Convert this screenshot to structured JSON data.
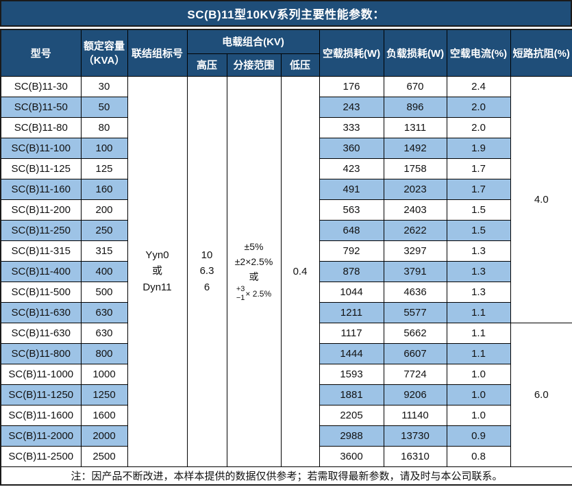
{
  "title": "SC(B)11型10KV系列主要性能参数：",
  "columns": {
    "model": "型号",
    "capacity_line1": "额定容量",
    "capacity_line2": "（KVA）",
    "vector_group": "联结组标号",
    "load_combo": "电载组合(KV)",
    "hv": "高压",
    "tap_range": "分接范围",
    "lv": "低压",
    "no_load_loss": "空载损耗(W)",
    "load_loss": "负载损耗(W)",
    "no_load_current": "空载电流(%)",
    "impedance": "短路抗阻(%)"
  },
  "merged": {
    "vector_group": "Yyn0\n或\nDyn11",
    "hv": "10\n6.3\n6",
    "lv": "0.4",
    "tap_range": {
      "lines": [
        "±5%",
        "±2×2.5%",
        "或"
      ],
      "stacked": {
        "top": "+3",
        "bottom": "−1",
        "suffix": "× 2.5%"
      }
    },
    "impedance_groups": [
      {
        "value": "4.0",
        "row_span": 12
      },
      {
        "value": "6.0",
        "row_span": 7
      }
    ]
  },
  "rows": [
    {
      "model": "SC(B)11-30",
      "capacity": "30",
      "no_load_loss": "176",
      "load_loss": "670",
      "no_load_current": "2.4"
    },
    {
      "model": "SC(B)11-50",
      "capacity": "50",
      "no_load_loss": "243",
      "load_loss": "896",
      "no_load_current": "2.0"
    },
    {
      "model": "SC(B)11-80",
      "capacity": "80",
      "no_load_loss": "333",
      "load_loss": "1311",
      "no_load_current": "2.0"
    },
    {
      "model": "SC(B)11-100",
      "capacity": "100",
      "no_load_loss": "360",
      "load_loss": "1492",
      "no_load_current": "1.9"
    },
    {
      "model": "SC(B)11-125",
      "capacity": "125",
      "no_load_loss": "423",
      "load_loss": "1758",
      "no_load_current": "1.7"
    },
    {
      "model": "SC(B)11-160",
      "capacity": "160",
      "no_load_loss": "491",
      "load_loss": "2023",
      "no_load_current": "1.7"
    },
    {
      "model": "SC(B)11-200",
      "capacity": "200",
      "no_load_loss": "563",
      "load_loss": "2403",
      "no_load_current": "1.5"
    },
    {
      "model": "SC(B)11-250",
      "capacity": "250",
      "no_load_loss": "648",
      "load_loss": "2622",
      "no_load_current": "1.5"
    },
    {
      "model": "SC(B)11-315",
      "capacity": "315",
      "no_load_loss": "792",
      "load_loss": "3297",
      "no_load_current": "1.3"
    },
    {
      "model": "SC(B)11-400",
      "capacity": "400",
      "no_load_loss": "878",
      "load_loss": "3791",
      "no_load_current": "1.3"
    },
    {
      "model": "SC(B)11-500",
      "capacity": "500",
      "no_load_loss": "1044",
      "load_loss": "4636",
      "no_load_current": "1.3"
    },
    {
      "model": "SC(B)11-630",
      "capacity": "630",
      "no_load_loss": "1211",
      "load_loss": "5577",
      "no_load_current": "1.1"
    },
    {
      "model": "SC(B)11-630",
      "capacity": "630",
      "no_load_loss": "1117",
      "load_loss": "5662",
      "no_load_current": "1.1"
    },
    {
      "model": "SC(B)11-800",
      "capacity": "800",
      "no_load_loss": "1444",
      "load_loss": "6607",
      "no_load_current": "1.1"
    },
    {
      "model": "SC(B)11-1000",
      "capacity": "1000",
      "no_load_loss": "1593",
      "load_loss": "7724",
      "no_load_current": "1.0"
    },
    {
      "model": "SC(B)11-1250",
      "capacity": "1250",
      "no_load_loss": "1881",
      "load_loss": "9206",
      "no_load_current": "1.0"
    },
    {
      "model": "SC(B)11-1600",
      "capacity": "1600",
      "no_load_loss": "2205",
      "load_loss": "11140",
      "no_load_current": "1.0"
    },
    {
      "model": "SC(B)11-2000",
      "capacity": "2000",
      "no_load_loss": "2988",
      "load_loss": "13730",
      "no_load_current": "0.9"
    },
    {
      "model": "SC(B)11-2500",
      "capacity": "2500",
      "no_load_loss": "3600",
      "load_loss": "16310",
      "no_load_current": "0.8"
    }
  ],
  "footer_note": "注：因产品不断改进，本样本提供的数据仅供参考；若需取得最新参数，请及时与本公司联系。",
  "colors": {
    "header_bg": "#1F4E79",
    "stripe_bg": "#9DC3E6",
    "border": "#000000",
    "header_text": "#FFFFFF",
    "body_text": "#111111"
  }
}
